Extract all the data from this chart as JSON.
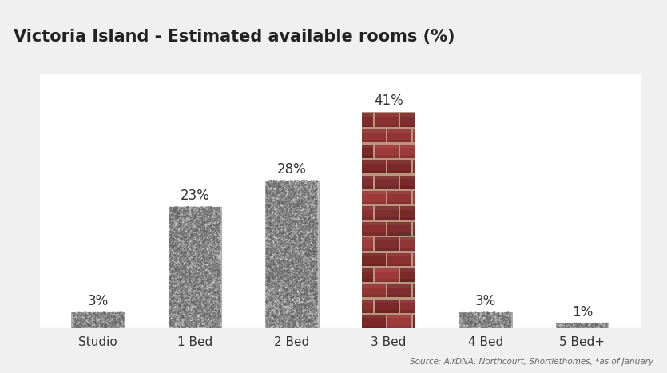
{
  "categories": [
    "Studio",
    "1 Bed",
    "2 Bed",
    "3 Bed",
    "4 Bed",
    "5 Bed+"
  ],
  "values": [
    3,
    23,
    28,
    41,
    3,
    1
  ],
  "labels": [
    "3%",
    "23%",
    "28%",
    "41%",
    "3%",
    "1%"
  ],
  "title": "Victoria Island - Estimated available rooms (%)",
  "source_text": "Source: AirDNA, Northcourt, Shortlethomes, *as of January",
  "background_color": "#f0f0f0",
  "plot_background": "#ffffff",
  "title_background": "#e0e0e0",
  "bar_width": 0.55,
  "ylim": [
    0,
    48
  ],
  "label_fontsize": 12,
  "title_fontsize": 15,
  "tick_fontsize": 11
}
